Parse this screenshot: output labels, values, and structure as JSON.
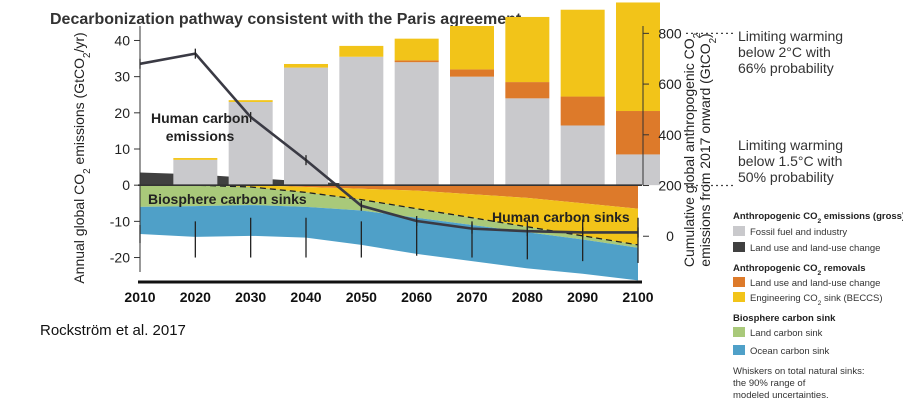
{
  "citation": "Rockström et al. 2017",
  "chart_data": {
    "type": "bar",
    "title": "Decarbonization pathway consistent with the Paris agreement",
    "ylabel_left": "Annual global CO2 emissions (GtCO2/yr)",
    "ylabel_right_line1": "Cumulative global anthropogenic CO2",
    "ylabel_right_line2": "emissions from 2017 onward (GtCO2)",
    "ylim": [
      -24,
      44
    ],
    "yticks": [
      -20,
      -10,
      0,
      10,
      20,
      30,
      40
    ],
    "ytick_labels": [
      "-20",
      "-10",
      "0",
      "10",
      "20",
      "30",
      "40"
    ],
    "y2lim": [
      -141,
      829
    ],
    "y2ticks": [
      0,
      200,
      400,
      600,
      800
    ],
    "y2tick_labels": [
      "0",
      "200",
      "400",
      "600",
      "800"
    ],
    "categories": [
      "2010",
      "2020",
      "2030",
      "2040",
      "2050",
      "2060",
      "2070",
      "2080",
      "2090",
      "2100"
    ],
    "x": [
      2010,
      2020,
      2030,
      2040,
      2050,
      2060,
      2070,
      2080,
      2090,
      2100
    ],
    "bars": {
      "years": [
        2020,
        2030,
        2040,
        2050,
        2060,
        2070,
        2080,
        2090,
        2100
      ],
      "series": [
        {
          "name": "Fossil fuel and industry",
          "color": "#c9c9cc",
          "values": [
            7,
            23,
            32.5,
            35.5,
            34,
            30,
            24,
            16.5,
            8.5
          ]
        },
        {
          "name": "Land use and land-use change",
          "color": "#dd7a2a",
          "values": [
            0,
            0,
            0,
            0,
            0.5,
            2,
            4.5,
            8,
            12
          ]
        },
        {
          "name": "Engineering CO2 sink (BECCS)",
          "color": "#f2c419",
          "values": [
            0.5,
            0.5,
            1,
            3,
            6,
            12,
            18,
            24,
            30
          ]
        }
      ]
    },
    "areas": {
      "x": [
        2010,
        2020,
        2030,
        2040,
        2050,
        2060,
        2070,
        2080,
        2090,
        2100
      ],
      "series": [
        {
          "name": "Land use and land-use change (emissions)",
          "color": "#404040",
          "values": [
            3.5,
            3,
            2,
            1,
            0.3,
            0,
            0,
            0,
            0,
            0
          ]
        },
        {
          "name": "Land use and land-use change (removals)",
          "color": "#dd7a2a",
          "values": [
            0,
            0,
            0,
            -0.5,
            -1,
            -1.5,
            -2.5,
            -3.5,
            -5,
            -6.5
          ]
        },
        {
          "name": "Engineering CO2 sink (BECCS)",
          "color": "#f2c419",
          "values": [
            0,
            0,
            -0.5,
            -1.5,
            -3,
            -5,
            -6.5,
            -8,
            -9,
            -10
          ]
        },
        {
          "name": "Land carbon sink",
          "color": "#a9c97a",
          "values": [
            -6,
            -5.8,
            -5,
            -4,
            -3,
            -2.5,
            -2,
            -1.5,
            -1,
            -0.8
          ]
        },
        {
          "name": "Ocean carbon sink",
          "color": "#4fa0c8",
          "values": [
            -7.5,
            -8.5,
            -8.5,
            -8.5,
            -9.5,
            -10,
            -10,
            -10,
            -9.5,
            -9
          ]
        }
      ]
    },
    "human_sink_boundary": {
      "x": [
        2010,
        2020,
        2030,
        2040,
        2050,
        2060,
        2070,
        2080,
        2090,
        2100
      ],
      "y": [
        0,
        0,
        -0.5,
        -2,
        -4,
        -6.5,
        -9,
        -11.5,
        -14,
        -16.5
      ]
    },
    "natural_sink_total": {
      "x": [
        2010,
        2020,
        2030,
        2040,
        2050,
        2060,
        2070,
        2080,
        2090,
        2100
      ],
      "y": [
        -13.5,
        -14.3,
        -13.5,
        -12.5,
        -12.5,
        -12.5,
        -12,
        -11.5,
        -10.5,
        -9.8
      ]
    },
    "whiskers": {
      "x": [
        2010,
        2020,
        2030,
        2040,
        2050,
        2060,
        2070,
        2080,
        2090,
        2100
      ],
      "low": [
        -16,
        -20,
        -20,
        -20,
        -20,
        -19.5,
        -20,
        -20.5,
        -21,
        -21.5
      ],
      "high": [
        -11,
        -10,
        -9,
        -9,
        -10,
        -10,
        -10,
        -10,
        -9.5,
        -9
      ]
    },
    "cumulative_line": {
      "name": "Cumulative global anthropogenic CO2 emissions from 2017 onward",
      "axis": "right",
      "x": [
        2010,
        2020,
        2030,
        2040,
        2050,
        2060,
        2070,
        2080,
        2090,
        2100
      ],
      "y": [
        680,
        720,
        470,
        300,
        120,
        60,
        30,
        20,
        15,
        15
      ]
    },
    "annotations": {
      "human_emissions_line1": "Human carbon",
      "human_emissions_line2": "emissions",
      "biosphere_sinks": "Biosphere carbon sinks",
      "human_sinks": "Human carbon sinks",
      "limit_2c": [
        "Limiting warming",
        "below 2°C with",
        "66% probability"
      ],
      "limit_2c_value": 800,
      "limit_15c": [
        "Limiting warming",
        "below 1.5°C with",
        "50% probability"
      ],
      "limit_15c_value": 200
    },
    "legend": {
      "groups": [
        {
          "header": "Anthropogenic CO2 emissions (gross)",
          "items": [
            {
              "label": "Fossil fuel and industry",
              "color": "#c9c9cc"
            },
            {
              "label": "Land use and land-use change",
              "color": "#404040"
            }
          ]
        },
        {
          "header": "Anthropogenic CO2 removals",
          "items": [
            {
              "label": "Land use and land-use change",
              "color": "#dd7a2a"
            },
            {
              "label": "Engineering CO2 sink (BECCS)",
              "color": "#f2c419"
            }
          ]
        },
        {
          "header": "Biosphere carbon sink",
          "items": [
            {
              "label": "Land carbon sink",
              "color": "#a9c97a"
            },
            {
              "label": "Ocean carbon sink",
              "color": "#4fa0c8"
            }
          ]
        }
      ],
      "note": [
        "Whiskers on total natural sinks:",
        "the 90% range of",
        "modeled uncertainties."
      ]
    }
  }
}
